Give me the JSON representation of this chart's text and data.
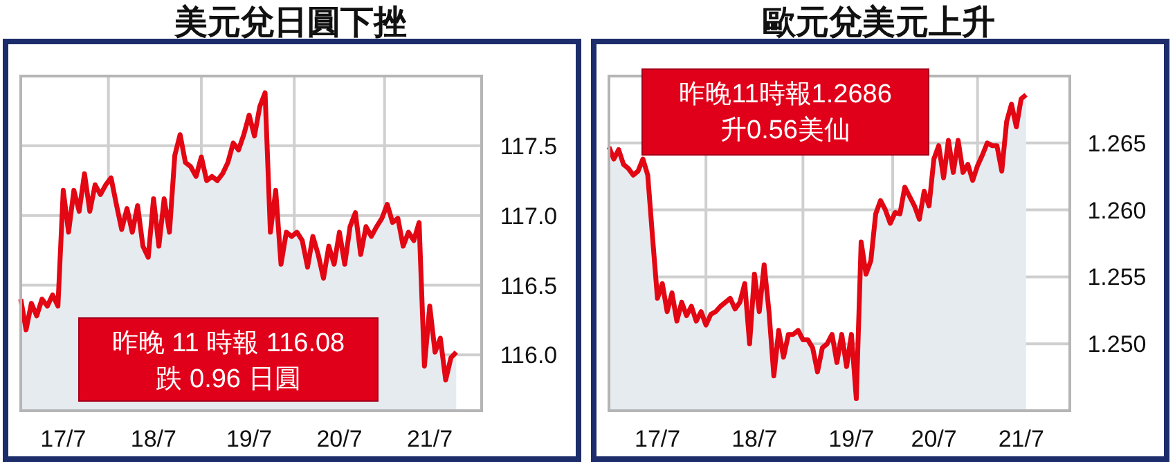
{
  "chart_data": [
    {
      "type": "area",
      "title": "美元兌日圓下挫",
      "annotations": [
        "昨晚 11 時報 116.08",
        "跌 0.96 日圓"
      ],
      "categories": [
        null,
        null,
        null,
        null,
        null,
        null,
        null,
        null,
        "17/7",
        null,
        null,
        null,
        null,
        null,
        null,
        null,
        null,
        null,
        null,
        null,
        null,
        null,
        null,
        null,
        null,
        "18/7",
        null,
        null,
        null,
        null,
        null,
        null,
        null,
        null,
        null,
        null,
        null,
        null,
        null,
        null,
        null,
        null,
        null,
        "19/7",
        null,
        null,
        null,
        null,
        null,
        null,
        null,
        null,
        null,
        null,
        null,
        null,
        null,
        null,
        null,
        null,
        "20/7",
        null,
        null,
        null,
        null,
        null,
        null,
        null,
        null,
        null,
        null,
        null,
        null,
        null,
        null,
        null,
        null,
        "21/7",
        null,
        null,
        null,
        null,
        null
      ],
      "values": [
        116.4,
        116.18,
        116.37,
        116.28,
        116.4,
        116.35,
        116.43,
        116.35,
        117.18,
        116.88,
        117.18,
        117.03,
        117.3,
        117.03,
        117.22,
        117.15,
        117.22,
        117.27,
        117.08,
        116.9,
        117.05,
        116.88,
        117.07,
        116.78,
        116.7,
        117.12,
        116.78,
        117.12,
        116.88,
        117.43,
        117.58,
        117.38,
        117.35,
        117.28,
        117.42,
        117.25,
        117.28,
        117.25,
        117.3,
        117.38,
        117.52,
        117.47,
        117.58,
        117.72,
        117.57,
        117.78,
        117.88,
        116.88,
        117.18,
        116.65,
        116.88,
        116.85,
        116.88,
        116.82,
        116.63,
        116.85,
        116.72,
        116.55,
        116.78,
        116.65,
        116.88,
        116.65,
        116.92,
        117.02,
        116.72,
        116.92,
        116.85,
        116.92,
        116.98,
        117.08,
        116.95,
        116.98,
        116.78,
        116.88,
        116.82,
        116.95,
        115.92,
        116.35,
        116.02,
        116.12,
        115.82,
        115.98,
        116.02
      ],
      "color": "#e30613",
      "ylim": [
        115.6,
        118.0
      ],
      "yticks": [
        {
          "value": 116,
          "label": "116.0"
        },
        116.5,
        {
          "value": 117,
          "label": "117.0"
        },
        117.5,
        {
          "value": 118,
          "label": null
        }
      ],
      "grid": true
    },
    {
      "type": "area",
      "title": "歐元兌美元上升",
      "annotations": [
        "昨晚11時報1.2686",
        "升0.56美仙"
      ],
      "categories": [
        null,
        null,
        null,
        null,
        null,
        null,
        null,
        null,
        null,
        null,
        "17/7",
        null,
        null,
        null,
        null,
        null,
        null,
        null,
        null,
        null,
        null,
        null,
        null,
        null,
        null,
        null,
        null,
        null,
        null,
        null,
        "18/7",
        null,
        null,
        null,
        null,
        null,
        null,
        null,
        null,
        null,
        null,
        null,
        null,
        null,
        null,
        null,
        null,
        null,
        null,
        null,
        "19/7",
        null,
        null,
        null,
        null,
        null,
        null,
        null,
        null,
        null,
        null,
        null,
        null,
        null,
        null,
        null,
        null,
        "20/7",
        null,
        null,
        null,
        null,
        null,
        null,
        null,
        null,
        null,
        null,
        null,
        null,
        null,
        null,
        null,
        null,
        null,
        "21/7",
        null
      ],
      "values": [
        1.2647,
        1.2638,
        1.2645,
        1.2634,
        1.2631,
        1.2626,
        1.2629,
        1.2638,
        1.2626,
        1.2579,
        1.2534,
        1.2545,
        1.2524,
        1.2538,
        1.2517,
        1.2531,
        1.2521,
        1.2528,
        1.2517,
        1.2524,
        1.2514,
        1.2522,
        1.2524,
        1.2528,
        1.2531,
        1.2534,
        1.2526,
        1.2531,
        1.2545,
        1.25,
        1.2552,
        1.2524,
        1.2559,
        1.2524,
        1.2476,
        1.251,
        1.249,
        1.2507,
        1.2507,
        1.251,
        1.2503,
        1.2503,
        1.2497,
        1.2479,
        1.2497,
        1.25,
        1.2507,
        1.2486,
        1.2507,
        1.2483,
        1.2507,
        1.2459,
        1.2576,
        1.2552,
        1.2562,
        1.2597,
        1.2607,
        1.26,
        1.259,
        1.2598,
        1.2597,
        1.2617,
        1.261,
        1.2603,
        1.2593,
        1.2614,
        1.2603,
        1.2638,
        1.2648,
        1.2624,
        1.2652,
        1.2628,
        1.2652,
        1.2628,
        1.2634,
        1.2622,
        1.2633,
        1.2641,
        1.265,
        1.2648,
        1.2648,
        1.2629,
        1.2666,
        1.2679,
        1.2662,
        1.2683,
        1.2686
      ],
      "color": "#e30613",
      "ylim": [
        1.245,
        1.27
      ],
      "yticks": [
        {
          "value": 1.25,
          "label": "1.250"
        },
        1.255,
        {
          "value": 1.26,
          "label": "1.260"
        },
        1.265,
        {
          "value": 1.27,
          "label": null
        }
      ],
      "grid": true
    }
  ]
}
